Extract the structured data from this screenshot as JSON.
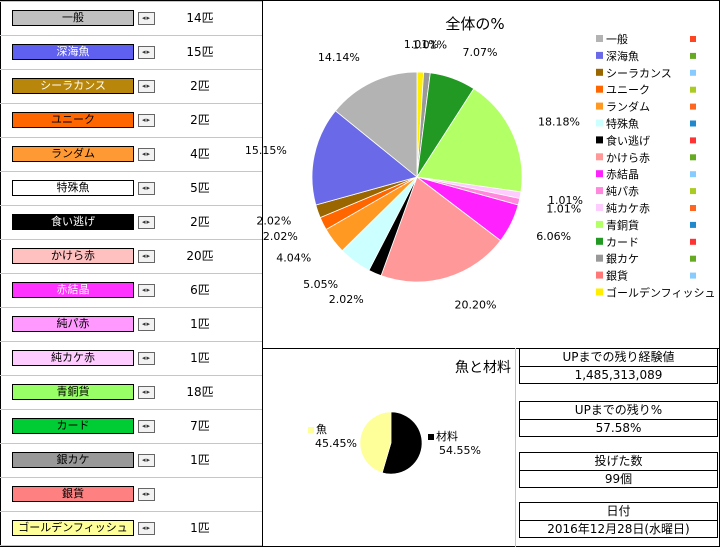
{
  "left_list": {
    "items": [
      {
        "label": "一般",
        "count": "14匹",
        "bg": "#c0c0c0",
        "fg": "#000000"
      },
      {
        "label": "深海魚",
        "count": "15匹",
        "bg": "#6060f0",
        "fg": "#ffffff"
      },
      {
        "label": "シーラカンス",
        "count": "2匹",
        "bg": "#b8860b",
        "fg": "#ffffff"
      },
      {
        "label": "ユニーク",
        "count": "2匹",
        "bg": "#ff6600",
        "fg": "#000000"
      },
      {
        "label": "ランダム",
        "count": "4匹",
        "bg": "#ff9933",
        "fg": "#000000"
      },
      {
        "label": "特殊魚",
        "count": "5匹",
        "bg": "#ffffff",
        "fg": "#000000"
      },
      {
        "label": "食い逃げ",
        "count": "2匹",
        "bg": "#000000",
        "fg": "#ffffff"
      },
      {
        "label": "かけら赤",
        "count": "20匹",
        "bg": "#ffc0c0",
        "fg": "#000000"
      },
      {
        "label": "赤結晶",
        "count": "6匹",
        "bg": "#ff33ff",
        "fg": "#ffffff"
      },
      {
        "label": "純パ赤",
        "count": "1匹",
        "bg": "#ff99ff",
        "fg": "#000000"
      },
      {
        "label": "純カケ赤",
        "count": "1匹",
        "bg": "#ffccff",
        "fg": "#000000"
      },
      {
        "label": "青銅貨",
        "count": "18匹",
        "bg": "#99ff66",
        "fg": "#000000"
      },
      {
        "label": "カード",
        "count": "7匹",
        "bg": "#00cc33",
        "fg": "#000000"
      },
      {
        "label": "銀カケ",
        "count": "1匹",
        "bg": "#999999",
        "fg": "#000000"
      },
      {
        "label": "銀貨",
        "count": "",
        "bg": "#ff8080",
        "fg": "#000000"
      },
      {
        "label": "ゴールデンフィッシュ",
        "count": "1匹",
        "bg": "#ffff99",
        "fg": "#000000"
      }
    ],
    "spin_glyph": "◂▸"
  },
  "chart_data": [
    {
      "type": "pie",
      "title": "全体の%",
      "legend_position": "right",
      "slices": [
        {
          "name": "一般",
          "value": 14.14,
          "color": "#b3b3b3",
          "label": "14.14%"
        },
        {
          "name": "深海魚",
          "value": 15.15,
          "color": "#6a6ae8",
          "label": "15.15%"
        },
        {
          "name": "シーラカンス",
          "value": 2.02,
          "color": "#996600",
          "label": "2.02%"
        },
        {
          "name": "ユニーク",
          "value": 2.02,
          "color": "#ff6600",
          "label": "2.02%"
        },
        {
          "name": "ランダム",
          "value": 4.04,
          "color": "#ff9922",
          "label": "4.04%"
        },
        {
          "name": "特殊魚",
          "value": 5.05,
          "color": "#ccffff",
          "label": "5.05%"
        },
        {
          "name": "食い逃げ",
          "value": 2.02,
          "color": "#000000",
          "label": "2.02%"
        },
        {
          "name": "かけら赤",
          "value": 20.2,
          "color": "#ff9999",
          "label": "20.20%"
        },
        {
          "name": "赤結晶",
          "value": 6.06,
          "color": "#ff22ff",
          "label": "6.06%"
        },
        {
          "name": "純パ赤",
          "value": 1.01,
          "color": "#ff88dd",
          "label": "1.01%"
        },
        {
          "name": "純カケ赤",
          "value": 1.01,
          "color": "#ffccff",
          "label": "1.01%"
        },
        {
          "name": "青銅貨",
          "value": 18.18,
          "color": "#b3ff66",
          "label": "18.18%"
        },
        {
          "name": "カード",
          "value": 7.07,
          "color": "#229922",
          "label": "7.07%"
        },
        {
          "name": "銀カケ",
          "value": 1.01,
          "color": "#999999",
          "label": "1.01%"
        },
        {
          "name": "銀貨",
          "value": 0,
          "color": "#ff7777",
          "label": ""
        },
        {
          "name": "ゴールデンフィッシュ",
          "value": 1.01,
          "color": "#ffee00",
          "label": "1.01%"
        }
      ],
      "legend_swatch_right_colors": [
        "#ff4422",
        "#66aa22",
        "#88ccff",
        "#aacc22",
        "#ff6622",
        "#2288cc",
        "#ff3333",
        "#66aa22",
        "#88ccff",
        "#aacc22",
        "#ff6622",
        "#2288cc",
        "#ff3333",
        "#66aa22",
        "#88ccff",
        "#aacc22"
      ]
    },
    {
      "type": "pie",
      "title": "魚と材料",
      "slices": [
        {
          "name": "魚",
          "value": 45.45,
          "color": "#ffff99",
          "label": "45.45%"
        },
        {
          "name": "材料",
          "value": 54.55,
          "color": "#000000",
          "label": "54.55%"
        }
      ]
    }
  ],
  "stats": {
    "exp_label": "UPまでの残り経験値",
    "exp_value": "1,485,313,089",
    "pct_label": "UPまでの残り%",
    "pct_value": "57.58%",
    "throws_label": "投げた数",
    "throws_value": "99個",
    "date_label": "日付",
    "date_value": "2016年12月28日(水曜日)"
  }
}
